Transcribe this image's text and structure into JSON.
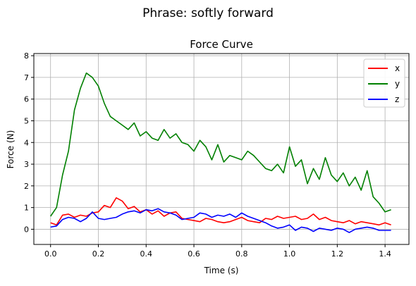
{
  "figure": {
    "suptitle": "Phrase: softly forward"
  },
  "chart_data": {
    "type": "line",
    "title": "Force Curve",
    "xlabel": "Time (s)",
    "ylabel": "Force (N)",
    "xlim": [
      -0.07,
      1.5
    ],
    "ylim": [
      -0.7,
      8.1
    ],
    "xticks": [
      0.0,
      0.2,
      0.4,
      0.6,
      0.8,
      1.0,
      1.2,
      1.4
    ],
    "xtick_labels": [
      "0.0",
      "0.2",
      "0.4",
      "0.6",
      "0.8",
      "1.0",
      "1.2",
      "1.4"
    ],
    "yticks": [
      0,
      1,
      2,
      3,
      4,
      5,
      6,
      7,
      8
    ],
    "ytick_labels": [
      "0",
      "1",
      "2",
      "3",
      "4",
      "5",
      "6",
      "7",
      "8"
    ],
    "grid": true,
    "legend_position": "top-right",
    "x": [
      0.0,
      0.025,
      0.05,
      0.075,
      0.1,
      0.125,
      0.15,
      0.175,
      0.2,
      0.225,
      0.25,
      0.275,
      0.3,
      0.325,
      0.35,
      0.375,
      0.4,
      0.425,
      0.45,
      0.475,
      0.5,
      0.525,
      0.55,
      0.575,
      0.6,
      0.625,
      0.65,
      0.675,
      0.7,
      0.725,
      0.75,
      0.775,
      0.8,
      0.825,
      0.85,
      0.875,
      0.9,
      0.925,
      0.95,
      0.975,
      1.0,
      1.025,
      1.05,
      1.075,
      1.1,
      1.125,
      1.15,
      1.175,
      1.2,
      1.225,
      1.25,
      1.275,
      1.3,
      1.325,
      1.35,
      1.375,
      1.4,
      1.425
    ],
    "series": [
      {
        "name": "x",
        "color": "#ff0000",
        "values": [
          0.3,
          0.2,
          0.65,
          0.7,
          0.55,
          0.65,
          0.6,
          0.75,
          0.8,
          1.1,
          1.0,
          1.45,
          1.3,
          0.95,
          1.05,
          0.8,
          0.9,
          0.7,
          0.85,
          0.6,
          0.75,
          0.8,
          0.5,
          0.45,
          0.4,
          0.35,
          0.5,
          0.45,
          0.35,
          0.3,
          0.35,
          0.45,
          0.55,
          0.4,
          0.35,
          0.3,
          0.5,
          0.45,
          0.6,
          0.5,
          0.55,
          0.6,
          0.45,
          0.5,
          0.7,
          0.45,
          0.55,
          0.4,
          0.35,
          0.3,
          0.4,
          0.25,
          0.35,
          0.3,
          0.25,
          0.2,
          0.3,
          0.2
        ]
      },
      {
        "name": "y",
        "color": "#008000",
        "values": [
          0.6,
          1.0,
          2.5,
          3.6,
          5.5,
          6.5,
          7.2,
          7.0,
          6.6,
          5.8,
          5.2,
          5.0,
          4.8,
          4.6,
          4.9,
          4.3,
          4.5,
          4.2,
          4.1,
          4.6,
          4.2,
          4.4,
          4.0,
          3.9,
          3.6,
          4.1,
          3.8,
          3.2,
          3.9,
          3.1,
          3.4,
          3.3,
          3.2,
          3.6,
          3.4,
          3.1,
          2.8,
          2.7,
          3.0,
          2.6,
          3.8,
          2.9,
          3.2,
          2.1,
          2.8,
          2.3,
          3.3,
          2.5,
          2.2,
          2.6,
          2.0,
          2.4,
          1.8,
          2.7,
          1.5,
          1.2,
          0.8,
          0.9
        ]
      },
      {
        "name": "z",
        "color": "#0000ff",
        "values": [
          0.1,
          0.15,
          0.45,
          0.55,
          0.5,
          0.35,
          0.5,
          0.8,
          0.5,
          0.45,
          0.5,
          0.55,
          0.7,
          0.8,
          0.85,
          0.75,
          0.9,
          0.85,
          0.95,
          0.8,
          0.75,
          0.65,
          0.45,
          0.5,
          0.55,
          0.75,
          0.7,
          0.55,
          0.65,
          0.6,
          0.7,
          0.55,
          0.75,
          0.6,
          0.5,
          0.4,
          0.3,
          0.15,
          0.05,
          0.1,
          0.2,
          -0.05,
          0.1,
          0.05,
          -0.1,
          0.05,
          0.0,
          -0.05,
          0.05,
          0.0,
          -0.15,
          0.0,
          0.05,
          0.1,
          0.05,
          -0.05,
          -0.05,
          -0.05
        ]
      }
    ]
  }
}
